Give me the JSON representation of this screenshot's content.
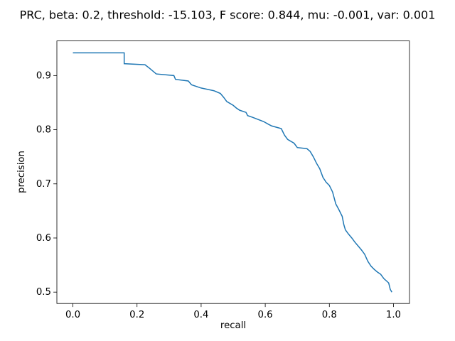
{
  "chart_data": {
    "type": "line",
    "title": "PRC, beta: 0.2, threshold: -15.103, F score: 0.844, mu: -0.001, var: 0.001",
    "xlabel": "recall",
    "ylabel": "precision",
    "xlim": [
      -0.05,
      1.05
    ],
    "ylim": [
      0.479,
      0.964
    ],
    "xticks": [
      {
        "value": 0,
        "label": "0.0"
      },
      0.2,
      0.4,
      0.6,
      0.8,
      {
        "value": 1,
        "label": "1.0"
      }
    ],
    "yticks": [
      0.5,
      0.6,
      0.7,
      0.8,
      0.9
    ],
    "series": [
      {
        "name": "PRC",
        "color": "#1f77b4",
        "x": [
          0.0,
          0.16,
          0.16,
          0.225,
          0.24,
          0.26,
          0.315,
          0.32,
          0.36,
          0.37,
          0.4,
          0.44,
          0.46,
          0.47,
          0.48,
          0.5,
          0.51,
          0.52,
          0.54,
          0.545,
          0.56,
          0.595,
          0.61,
          0.62,
          0.65,
          0.66,
          0.67,
          0.69,
          0.7,
          0.73,
          0.74,
          0.75,
          0.76,
          0.77,
          0.78,
          0.79,
          0.8,
          0.81,
          0.82,
          0.83,
          0.84,
          0.845,
          0.85,
          0.86,
          0.87,
          0.88,
          0.89,
          0.9,
          0.91,
          0.92,
          0.93,
          0.94,
          0.95,
          0.96,
          0.97,
          0.985,
          0.99,
          0.995
        ],
        "values": [
          0.942,
          0.942,
          0.922,
          0.92,
          0.913,
          0.903,
          0.9,
          0.893,
          0.89,
          0.883,
          0.877,
          0.872,
          0.867,
          0.86,
          0.852,
          0.845,
          0.84,
          0.836,
          0.832,
          0.826,
          0.823,
          0.815,
          0.81,
          0.807,
          0.802,
          0.79,
          0.782,
          0.775,
          0.767,
          0.765,
          0.76,
          0.75,
          0.738,
          0.728,
          0.712,
          0.703,
          0.697,
          0.685,
          0.663,
          0.652,
          0.64,
          0.625,
          0.615,
          0.607,
          0.6,
          0.592,
          0.585,
          0.578,
          0.57,
          0.557,
          0.548,
          0.542,
          0.537,
          0.533,
          0.525,
          0.517,
          0.505,
          0.5
        ]
      }
    ]
  }
}
